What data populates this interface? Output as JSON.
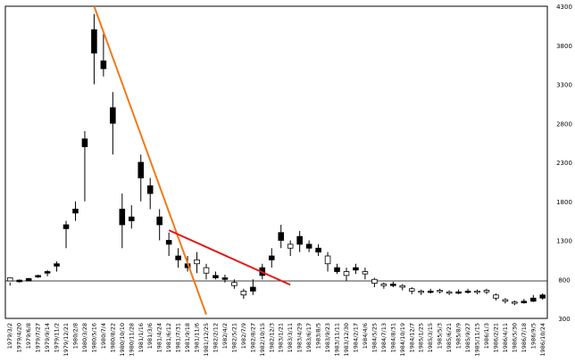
{
  "chart_data": {
    "type": "candlestick",
    "ylim": [
      300,
      4300
    ],
    "y_ticks": [
      300,
      800,
      1300,
      1800,
      2300,
      2800,
      3300,
      3800,
      4300
    ],
    "y_axis_position": "right",
    "grid": "horizontal gridline at 800",
    "x_tick_labels": [
      "1979/3/2",
      "1979/4/20",
      "1979/6/8",
      "1979/7/27",
      "1979/9/14",
      "1979/11/2",
      "1979/12/21",
      "1980/2/8",
      "1980/3/28",
      "1980/5/16",
      "1980/7/4",
      "1980/8/22",
      "1980/10/10",
      "1980/11/28",
      "1981/1/16",
      "1981/3/6",
      "1981/4/24",
      "1981/6/12",
      "1981/7/31",
      "1981/9/18",
      "1981/11/6",
      "1981/12/25",
      "1982/2/12",
      "1982/4/2",
      "1982/5/21",
      "1982/7/9",
      "1982/8/27",
      "1982/10/15",
      "1982/12/3",
      "1983/1/21",
      "1983/3/11",
      "1983/4/29",
      "1983/6/17",
      "1983/8/5",
      "1983/9/23",
      "1983/11/11",
      "1983/12/30",
      "1984/2/17",
      "1984/4/6",
      "1984/5/25",
      "1984/7/13",
      "1984/8/31",
      "1984/10/19",
      "1984/12/7",
      "1985/1/25",
      "1985/3/15",
      "1985/5/3",
      "1985/6/21",
      "1985/8/9",
      "1985/9/27",
      "1985/11/15",
      "1986/1/3",
      "1986/2/21",
      "1986/4/11",
      "1986/5/30",
      "1986/7/18",
      "1986/9/5",
      "1986/10/24"
    ],
    "series": [
      {
        "x": "1979/3/2",
        "values": [
          780,
          720,
          760,
          820
        ]
      },
      {
        "x": "1979/4/20",
        "values": [
          790,
          760,
          800,
          770
        ]
      },
      {
        "x": "1979/6/8",
        "values": [
          810,
          790,
          820,
          780
        ]
      },
      {
        "x": "1979/7/27",
        "values": [
          850,
          820,
          860,
          830
        ]
      },
      {
        "x": "1979/9/14",
        "values": [
          900,
          840,
          920,
          880
        ]
      },
      {
        "x": "1979/11/2",
        "values": [
          1000,
          900,
          1030,
          970
        ]
      },
      {
        "x": "1979/12/21",
        "values": [
          1500,
          1200,
          1550,
          1450
        ]
      },
      {
        "x": "1980/2/8",
        "values": [
          1700,
          1550,
          1800,
          1650
        ]
      },
      {
        "x": "1980/3/28",
        "values": [
          2600,
          1800,
          2700,
          2500
        ]
      },
      {
        "x": "1980/5/16",
        "values": [
          4000,
          3300,
          4200,
          3700
        ]
      },
      {
        "x": "1980/7/4",
        "values": [
          3600,
          3400,
          3950,
          3500
        ]
      },
      {
        "x": "1980/8/22",
        "values": [
          3000,
          2400,
          3200,
          2800
        ]
      },
      {
        "x": "1980/10/10",
        "values": [
          1700,
          1200,
          1900,
          1500
        ]
      },
      {
        "x": "1980/11/28",
        "values": [
          1600,
          1450,
          1750,
          1550
        ]
      },
      {
        "x": "1981/1/16",
        "values": [
          2300,
          1800,
          2400,
          2100
        ]
      },
      {
        "x": "1981/3/6",
        "values": [
          2000,
          1700,
          2100,
          1900
        ]
      },
      {
        "x": "1981/4/24",
        "values": [
          1600,
          1300,
          1700,
          1500
        ]
      },
      {
        "x": "1981/6/12",
        "values": [
          1300,
          1100,
          1400,
          1250
        ]
      },
      {
        "x": "1981/7/31",
        "values": [
          1100,
          950,
          1200,
          1050
        ]
      },
      {
        "x": "1981/9/18",
        "values": [
          1000,
          900,
          1100,
          950
        ]
      },
      {
        "x": "1981/11/6",
        "values": [
          1000,
          880,
          1150,
          1050
        ]
      },
      {
        "x": "1981/12/25",
        "values": [
          880,
          800,
          1000,
          950
        ]
      },
      {
        "x": "1982/2/12",
        "values": [
          850,
          800,
          900,
          820
        ]
      },
      {
        "x": "1982/4/2",
        "values": [
          820,
          760,
          860,
          800
        ]
      },
      {
        "x": "1982/5/21",
        "values": [
          720,
          680,
          800,
          760
        ]
      },
      {
        "x": "1982/7/9",
        "values": [
          600,
          550,
          680,
          650
        ]
      },
      {
        "x": "1982/8/27",
        "values": [
          700,
          600,
          800,
          650
        ]
      },
      {
        "x": "1982/10/15",
        "values": [
          950,
          800,
          1000,
          850
        ]
      },
      {
        "x": "1982/12/3",
        "values": [
          1100,
          950,
          1200,
          1050
        ]
      },
      {
        "x": "1983/1/21",
        "values": [
          1400,
          1200,
          1500,
          1300
        ]
      },
      {
        "x": "1983/3/11",
        "values": [
          1200,
          1100,
          1300,
          1250
        ]
      },
      {
        "x": "1983/4/29",
        "values": [
          1350,
          1150,
          1420,
          1250
        ]
      },
      {
        "x": "1983/6/17",
        "values": [
          1250,
          1150,
          1300,
          1200
        ]
      },
      {
        "x": "1983/8/5",
        "values": [
          1200,
          1100,
          1250,
          1150
        ]
      },
      {
        "x": "1983/9/23",
        "values": [
          1000,
          900,
          1150,
          1100
        ]
      },
      {
        "x": "1983/11/11",
        "values": [
          950,
          870,
          1000,
          900
        ]
      },
      {
        "x": "1983/12/30",
        "values": [
          850,
          780,
          950,
          900
        ]
      },
      {
        "x": "1984/2/17",
        "values": [
          950,
          870,
          1000,
          920
        ]
      },
      {
        "x": "1984/4/6",
        "values": [
          870,
          800,
          950,
          900
        ]
      },
      {
        "x": "1984/5/25",
        "values": [
          750,
          700,
          820,
          800
        ]
      },
      {
        "x": "1984/7/13",
        "values": [
          720,
          680,
          760,
          740
        ]
      },
      {
        "x": "1984/8/31",
        "values": [
          740,
          700,
          770,
          720
        ]
      },
      {
        "x": "1984/10/19",
        "values": [
          700,
          660,
          740,
          720
        ]
      },
      {
        "x": "1984/12/7",
        "values": [
          650,
          610,
          700,
          680
        ]
      },
      {
        "x": "1985/1/25",
        "values": [
          640,
          600,
          670,
          650
        ]
      },
      {
        "x": "1985/3/15",
        "values": [
          650,
          620,
          680,
          640
        ]
      },
      {
        "x": "1985/5/3",
        "values": [
          650,
          620,
          680,
          660
        ]
      },
      {
        "x": "1985/6/21",
        "values": [
          630,
          600,
          660,
          640
        ]
      },
      {
        "x": "1985/8/9",
        "values": [
          640,
          610,
          670,
          630
        ]
      },
      {
        "x": "1985/9/27",
        "values": [
          650,
          620,
          680,
          640
        ]
      },
      {
        "x": "1985/11/15",
        "values": [
          640,
          610,
          670,
          650
        ]
      },
      {
        "x": "1986/1/3",
        "values": [
          640,
          610,
          680,
          660
        ]
      },
      {
        "x": "1986/2/21",
        "values": [
          560,
          530,
          620,
          600
        ]
      },
      {
        "x": "1986/4/11",
        "values": [
          520,
          490,
          560,
          540
        ]
      },
      {
        "x": "1986/5/30",
        "values": [
          500,
          470,
          530,
          510
        ]
      },
      {
        "x": "1986/7/18",
        "values": [
          520,
          490,
          550,
          500
        ]
      },
      {
        "x": "1986/9/5",
        "values": [
          560,
          510,
          600,
          520
        ]
      },
      {
        "x": "1986/10/24",
        "values": [
          600,
          540,
          620,
          560
        ]
      }
    ],
    "trendlines": [
      {
        "color": "#f07a1a",
        "from": [
          "1980/5/16",
          4300
        ],
        "to": [
          "1981/12/25",
          350
        ]
      },
      {
        "color": "#e41515",
        "from": [
          "1981/6/12",
          1430
        ],
        "to": [
          "1983/3/11",
          730
        ]
      }
    ]
  }
}
